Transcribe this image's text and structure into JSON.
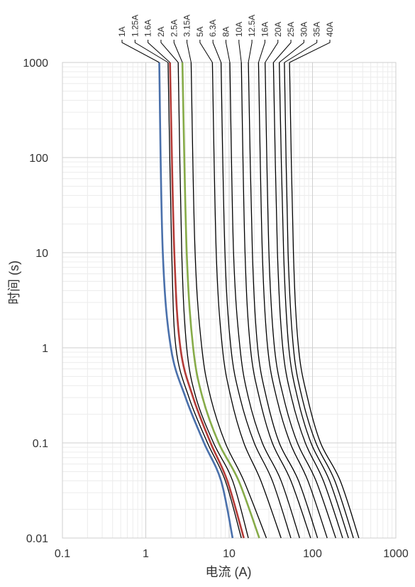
{
  "chart_data": {
    "type": "line",
    "xlabel": "电流 (A)",
    "ylabel": "时间 (s)",
    "x_scale": "log",
    "y_scale": "log",
    "xlim": [
      0.1,
      1000
    ],
    "ylim": [
      0.01,
      1000
    ],
    "x_ticks": [
      "0.1",
      "1",
      "10",
      "100",
      "1000"
    ],
    "y_ticks": [
      "1000",
      "100",
      "10",
      "1",
      "0.1",
      "0.01"
    ],
    "grid": true,
    "legend": "rating labels along the top, with leader lines to each curve",
    "colors": {
      "default": "#000000",
      "1A": "#4a70ab",
      "1.6A": "#b33a36",
      "2.5A": "#86ab48"
    },
    "series": [
      {
        "name": "1A",
        "points": [
          [
            1.45,
            1000
          ],
          [
            1.6,
            10
          ],
          [
            2.0,
            1
          ],
          [
            3.0,
            0.3
          ],
          [
            5.0,
            0.1
          ],
          [
            8.0,
            0.04
          ],
          [
            11.0,
            0.01
          ]
        ]
      },
      {
        "name": "1.25A",
        "points": [
          [
            1.85,
            1000
          ],
          [
            2.05,
            10
          ],
          [
            2.3,
            1
          ],
          [
            3.3,
            0.3
          ],
          [
            5.5,
            0.1
          ],
          [
            9.0,
            0.04
          ],
          [
            14.0,
            0.01
          ]
        ]
      },
      {
        "name": "1.6A",
        "points": [
          [
            1.95,
            1000
          ],
          [
            2.2,
            10
          ],
          [
            2.6,
            1
          ],
          [
            3.7,
            0.3
          ],
          [
            6.0,
            0.1
          ],
          [
            9.5,
            0.04
          ],
          [
            15.0,
            0.01
          ]
        ]
      },
      {
        "name": "2A",
        "points": [
          [
            2.45,
            1000
          ],
          [
            2.7,
            10
          ],
          [
            3.1,
            1
          ],
          [
            4.0,
            0.3
          ],
          [
            6.5,
            0.1
          ],
          [
            11.0,
            0.04
          ],
          [
            17.0,
            0.01
          ]
        ]
      },
      {
        "name": "2.5A",
        "points": [
          [
            2.75,
            1000
          ],
          [
            3.1,
            10
          ],
          [
            3.7,
            1
          ],
          [
            4.8,
            0.3
          ],
          [
            7.5,
            0.1
          ],
          [
            13.0,
            0.04
          ],
          [
            23.0,
            0.01
          ]
        ]
      },
      {
        "name": "3.15A",
        "points": [
          [
            3.5,
            1000
          ],
          [
            3.9,
            10
          ],
          [
            4.7,
            1
          ],
          [
            6.0,
            0.3
          ],
          [
            9.0,
            0.1
          ],
          [
            15.0,
            0.04
          ],
          [
            28.0,
            0.01
          ]
        ]
      },
      {
        "name": "5A",
        "points": [
          [
            6.3,
            1000
          ],
          [
            7.0,
            10
          ],
          [
            8.3,
            1
          ],
          [
            10.5,
            0.3
          ],
          [
            15.0,
            0.1
          ],
          [
            24.0,
            0.04
          ],
          [
            42.0,
            0.01
          ]
        ]
      },
      {
        "name": "6.3A",
        "points": [
          [
            8.0,
            1000
          ],
          [
            8.9,
            10
          ],
          [
            10.5,
            1
          ],
          [
            13.5,
            0.3
          ],
          [
            20.0,
            0.1
          ],
          [
            33.0,
            0.04
          ],
          [
            55.0,
            0.01
          ]
        ]
      },
      {
        "name": "8A",
        "points": [
          [
            10.2,
            1000
          ],
          [
            11.3,
            10
          ],
          [
            13.5,
            1
          ],
          [
            17.0,
            0.3
          ],
          [
            25.0,
            0.1
          ],
          [
            42.0,
            0.04
          ],
          [
            70.0,
            0.01
          ]
        ]
      },
      {
        "name": "10A",
        "points": [
          [
            14.0,
            1000
          ],
          [
            15.5,
            10
          ],
          [
            18.0,
            1
          ],
          [
            23.0,
            0.3
          ],
          [
            33.0,
            0.1
          ],
          [
            55.0,
            0.04
          ],
          [
            95.0,
            0.01
          ]
        ]
      },
      {
        "name": "12.5A",
        "points": [
          [
            17.0,
            1000
          ],
          [
            19.0,
            10
          ],
          [
            22.0,
            1
          ],
          [
            28.0,
            0.3
          ],
          [
            40.0,
            0.1
          ],
          [
            68.0,
            0.04
          ],
          [
            115.0,
            0.01
          ]
        ]
      },
      {
        "name": "16A",
        "points": [
          [
            22.5,
            1000
          ],
          [
            25.0,
            10
          ],
          [
            29.0,
            1
          ],
          [
            37.0,
            0.3
          ],
          [
            54.0,
            0.1
          ],
          [
            88.0,
            0.04
          ],
          [
            150.0,
            0.01
          ]
        ]
      },
      {
        "name": "20A",
        "points": [
          [
            27.0,
            1000
          ],
          [
            30.0,
            10
          ],
          [
            35.0,
            1
          ],
          [
            45.0,
            0.3
          ],
          [
            66.0,
            0.1
          ],
          [
            110.0,
            0.04
          ],
          [
            190.0,
            0.01
          ]
        ]
      },
      {
        "name": "25A",
        "points": [
          [
            34.0,
            1000
          ],
          [
            38.0,
            10
          ],
          [
            44.0,
            1
          ],
          [
            56.0,
            0.3
          ],
          [
            82.0,
            0.1
          ],
          [
            135.0,
            0.04
          ],
          [
            230.0,
            0.01
          ]
        ]
      },
      {
        "name": "30A",
        "points": [
          [
            40.0,
            1000
          ],
          [
            45.0,
            10
          ],
          [
            52.0,
            1
          ],
          [
            66.0,
            0.3
          ],
          [
            96.0,
            0.1
          ],
          [
            160.0,
            0.04
          ],
          [
            270.0,
            0.01
          ]
        ]
      },
      {
        "name": "35A",
        "points": [
          [
            46.0,
            1000
          ],
          [
            51.0,
            10
          ],
          [
            59.0,
            1
          ],
          [
            75.0,
            0.3
          ],
          [
            110.0,
            0.1
          ],
          [
            185.0,
            0.04
          ],
          [
            310.0,
            0.01
          ]
        ]
      },
      {
        "name": "40A",
        "points": [
          [
            53.0,
            1000
          ],
          [
            59.0,
            10
          ],
          [
            68.0,
            1
          ],
          [
            87.0,
            0.3
          ],
          [
            125.0,
            0.1
          ],
          [
            215.0,
            0.04
          ],
          [
            360.0,
            0.01
          ]
        ]
      }
    ]
  }
}
